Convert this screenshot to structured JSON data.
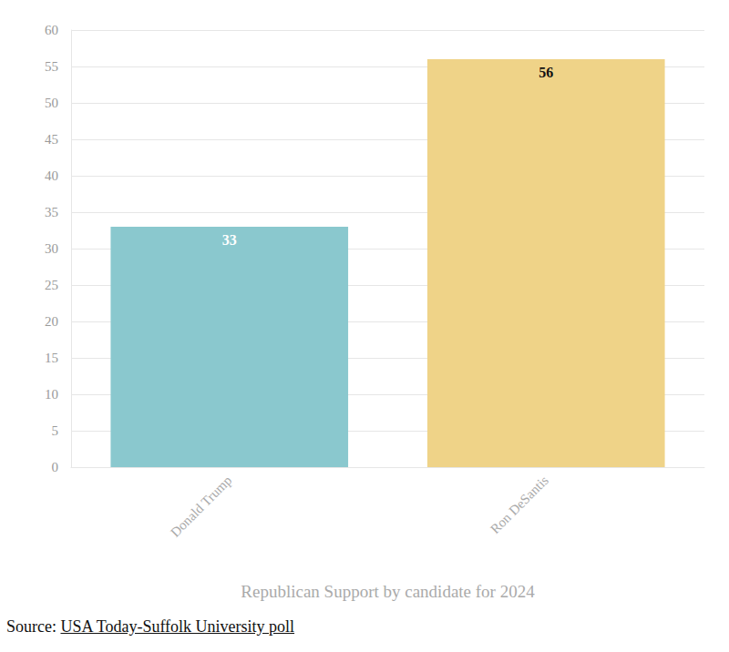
{
  "chart_data": {
    "type": "bar",
    "xlabel": "Republican Support by candidate for 2024",
    "categories": [
      "Donald Trump",
      "Ron DeSantis"
    ],
    "values": [
      33,
      56
    ],
    "colors": [
      "#8ac8ce",
      "#efd388"
    ],
    "ylim": [
      0,
      60
    ],
    "yticks": [
      0,
      5,
      10,
      15,
      20,
      25,
      30,
      35,
      40,
      45,
      50,
      55,
      60
    ],
    "grid": true,
    "data_labels": true,
    "source_label": "Source:",
    "source": "USA Today-Suffolk University poll"
  }
}
